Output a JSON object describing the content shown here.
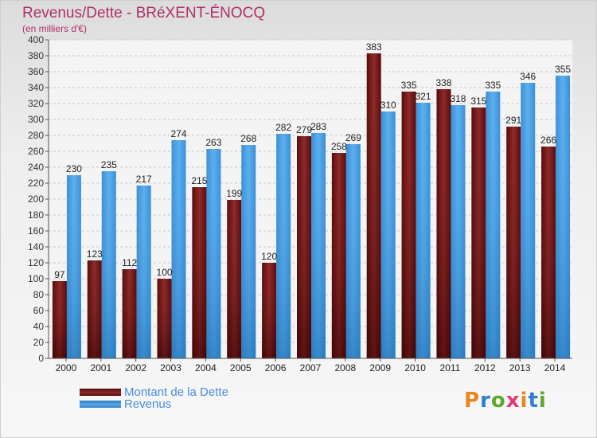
{
  "header": {
    "title": "Revenus/Dette - BRéXENT-ÉNOCQ",
    "subtitle": "(en milliers d'€)"
  },
  "legend": {
    "debt_label": "Montant de la Dette",
    "revenue_label": "Revenus"
  },
  "logo": {
    "text": "Proxiti"
  },
  "colors": {
    "debt": "#7a1a1a",
    "revenue": "#4ea3e6",
    "title": "#b0306a"
  },
  "chart_data": {
    "type": "bar",
    "title": "Revenus/Dette - BRéXENT-ÉNOCQ",
    "subtitle": "(en milliers d'€)",
    "categories": [
      "2000",
      "2001",
      "2002",
      "2003",
      "2004",
      "2005",
      "2006",
      "2007",
      "2008",
      "2009",
      "2010",
      "2011",
      "2012",
      "2013",
      "2014"
    ],
    "series": [
      {
        "name": "Montant de la Dette",
        "values": [
          97,
          123,
          112,
          100,
          215,
          199,
          120,
          279,
          258,
          383,
          335,
          338,
          315,
          291,
          266
        ]
      },
      {
        "name": "Revenus",
        "values": [
          230,
          235,
          217,
          274,
          263,
          268,
          282,
          283,
          269,
          310,
          321,
          318,
          335,
          346,
          355
        ]
      }
    ],
    "ylim": [
      0,
      400
    ],
    "ytick_step": 20,
    "grid": true,
    "legend_position": "bottom-left"
  }
}
